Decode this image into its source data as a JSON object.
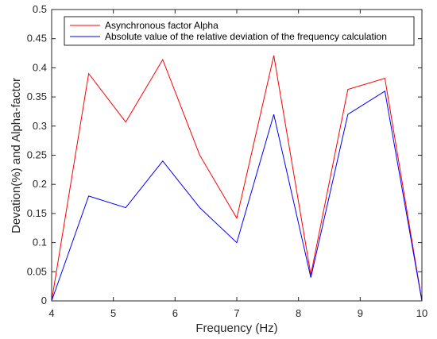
{
  "chart_data": {
    "type": "line",
    "xlabel": "Frequency (Hz)",
    "ylabel": "Devation(%) and Alpha-factor",
    "xlim": [
      4,
      10
    ],
    "ylim": [
      0,
      0.5
    ],
    "xticks": [
      "4",
      "5",
      "6",
      "7",
      "8",
      "9",
      "10"
    ],
    "yticks": [
      "0",
      "0.05",
      "0.1",
      "0.15",
      "0.2",
      "0.25",
      "0.3",
      "0.35",
      "0.4",
      "0.45",
      "0.5"
    ],
    "grid": false,
    "legend_position": "top-right",
    "x": [
      4.0,
      4.6,
      5.2,
      5.8,
      6.4,
      7.0,
      7.6,
      8.2,
      8.8,
      9.4,
      10.0
    ],
    "series": [
      {
        "name": "Asynchronous factor Alpha",
        "color": "#ff0000",
        "values": [
          0.0,
          0.39,
          0.307,
          0.414,
          0.25,
          0.142,
          0.421,
          0.045,
          0.363,
          0.382,
          0.0
        ]
      },
      {
        "name": "Absolute value of the relative deviation of the frequency calculation",
        "color": "#0000ff",
        "values": [
          0.0,
          0.18,
          0.16,
          0.24,
          0.16,
          0.1,
          0.32,
          0.04,
          0.32,
          0.36,
          0.0
        ]
      }
    ]
  }
}
